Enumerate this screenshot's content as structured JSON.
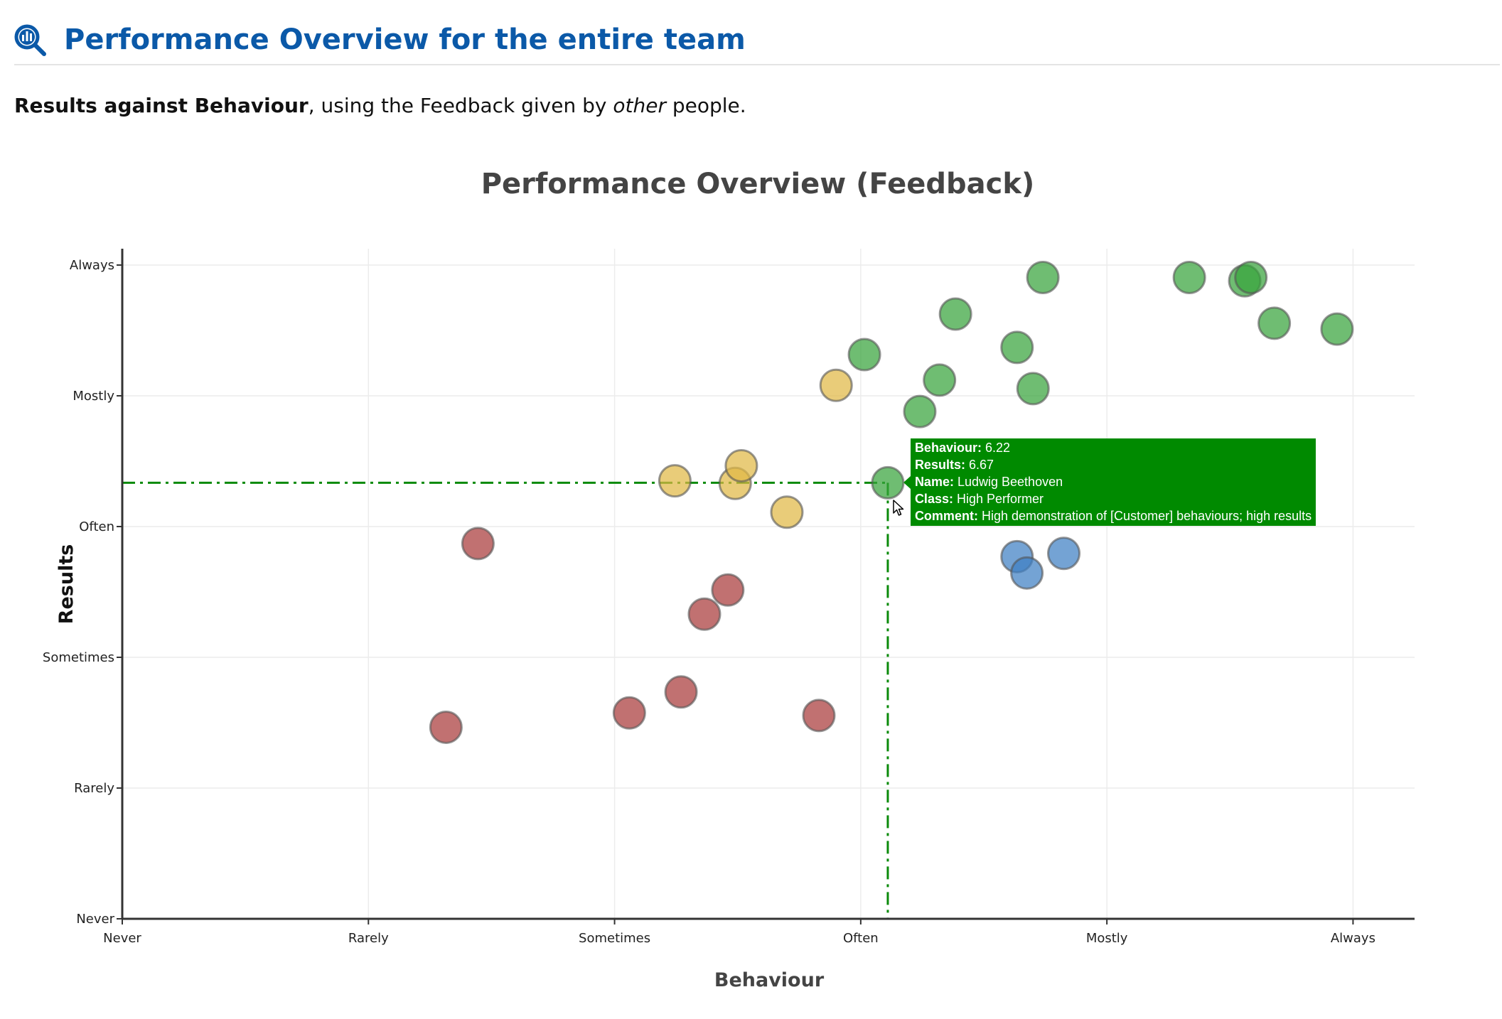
{
  "header": {
    "title": "Performance Overview for the entire team",
    "icon": "search-chart-icon",
    "accent_color": "#0b59a8"
  },
  "intro": {
    "bold": "Results against Behaviour",
    "middle": ", using the Feedback given by ",
    "italic": "other",
    "end": " people."
  },
  "tooltip": {
    "behaviour_label": "Behaviour:",
    "behaviour_value": "6.22",
    "results_label": "Results:",
    "results_value": "6.67",
    "name_label": "Name:",
    "name_value": "Ludwig Beethoven",
    "class_label": "Class:",
    "class_value": "High Performer",
    "comment_label": "Comment:",
    "comment_value": "High demonstration of [Customer] behaviours; high results",
    "color": "#008a00"
  },
  "chart_data": {
    "type": "scatter",
    "title": "Performance Overview (Feedback)",
    "xlabel": "Behaviour",
    "ylabel": "Results",
    "xlim": [
      0,
      10.5
    ],
    "ylim": [
      0,
      10.25
    ],
    "x_ticks": [
      {
        "value": 0,
        "label": "Never"
      },
      {
        "value": 2,
        "label": "Rarely"
      },
      {
        "value": 4,
        "label": "Sometimes"
      },
      {
        "value": 6,
        "label": "Often"
      },
      {
        "value": 8,
        "label": "Mostly"
      },
      {
        "value": 10,
        "label": "Always"
      }
    ],
    "y_ticks": [
      {
        "value": 0,
        "label": "Never"
      },
      {
        "value": 2,
        "label": "Rarely"
      },
      {
        "value": 4,
        "label": "Sometimes"
      },
      {
        "value": 6,
        "label": "Often"
      },
      {
        "value": 8,
        "label": "Mostly"
      },
      {
        "value": 10,
        "label": "Always"
      }
    ],
    "grid": true,
    "crosshair": {
      "x": 6.22,
      "y": 6.67
    },
    "series": [
      {
        "color": "#3f7fc4",
        "points": [
          [
            7.27,
            5.54
          ],
          [
            7.35,
            5.29
          ],
          [
            7.65,
            5.59
          ]
        ]
      },
      {
        "color": "#37a33b",
        "points": [
          [
            6.22,
            6.67
          ],
          [
            6.03,
            8.63
          ],
          [
            6.48,
            7.76
          ],
          [
            6.64,
            8.24
          ],
          [
            6.77,
            9.25
          ],
          [
            7.27,
            8.74
          ],
          [
            7.4,
            8.11
          ],
          [
            7.48,
            9.81
          ],
          [
            8.67,
            9.81
          ],
          [
            9.12,
            9.76
          ],
          [
            9.17,
            9.81
          ],
          [
            9.36,
            9.11
          ],
          [
            9.87,
            9.02
          ]
        ]
      },
      {
        "color": "#e0b845",
        "points": [
          [
            4.49,
            6.7
          ],
          [
            4.98,
            6.66
          ],
          [
            5.03,
            6.93
          ],
          [
            5.4,
            6.22
          ],
          [
            5.8,
            8.16
          ]
        ]
      },
      {
        "color": "#a93a3a",
        "points": [
          [
            2.63,
            2.93
          ],
          [
            2.89,
            5.74
          ],
          [
            4.12,
            3.15
          ],
          [
            4.54,
            3.47
          ],
          [
            4.73,
            4.66
          ],
          [
            4.92,
            5.03
          ],
          [
            5.66,
            3.11
          ]
        ]
      }
    ]
  }
}
